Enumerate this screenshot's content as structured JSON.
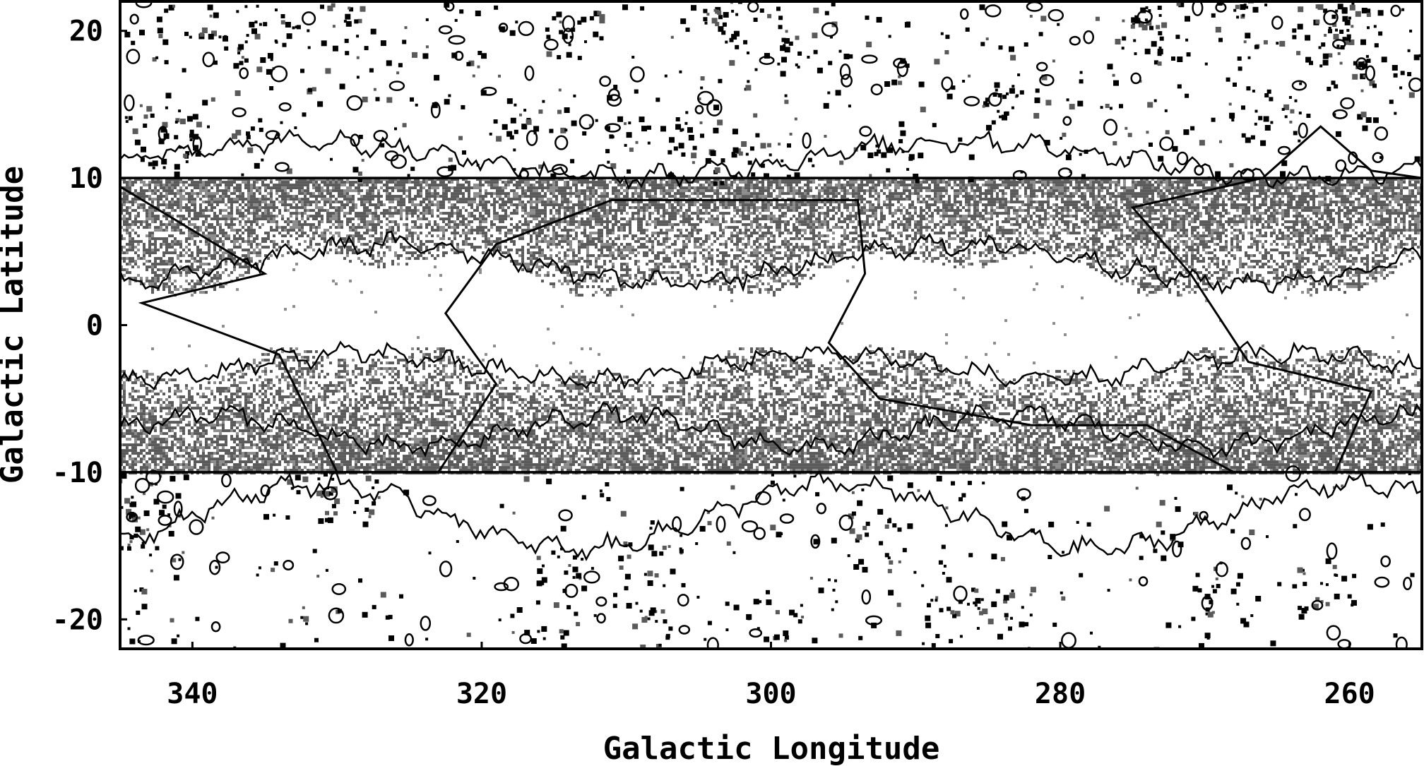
{
  "chart_data": {
    "type": "scatter",
    "title": "",
    "xlabel": "Galactic Longitude",
    "ylabel": "Galactic Latitude",
    "xlim": [
      345,
      255
    ],
    "ylim": [
      -22,
      22
    ],
    "x_reversed": true,
    "xticks": [
      340,
      320,
      300,
      280,
      260
    ],
    "xtick_labels": [
      "340",
      "320",
      "300",
      "280",
      "260"
    ],
    "yticks": [
      20,
      10,
      0,
      -10,
      -20
    ],
    "ytick_labels": [
      "20",
      "10",
      "0",
      "-10",
      "-20"
    ],
    "reference_lines_b": [
      10,
      -10
    ],
    "survey_region_outline": [
      [
        346,
        10
      ],
      [
        335,
        3.5
      ],
      [
        343.5,
        1.5
      ],
      [
        334,
        -2
      ],
      [
        330,
        -10
      ],
      [
        323,
        -10
      ],
      [
        319,
        -4
      ],
      [
        322.5,
        0.8
      ],
      [
        319,
        5.5
      ],
      [
        311,
        8.5
      ],
      [
        294,
        8.5
      ],
      [
        293.5,
        3.5
      ],
      [
        296,
        -1.2
      ],
      [
        292.5,
        -5
      ],
      [
        282,
        -6.8
      ],
      [
        274,
        -6.8
      ],
      [
        268,
        -10
      ],
      [
        261,
        -10
      ],
      [
        258.5,
        -4.5
      ],
      [
        267,
        -2.5
      ],
      [
        271,
        3.5
      ],
      [
        275,
        8
      ],
      [
        266,
        10
      ],
      [
        262,
        13.5
      ],
      [
        258.5,
        10.5
      ],
      [
        255,
        10
      ]
    ],
    "grid": false,
    "legend": "none",
    "colors": {
      "foreground": "#000000",
      "dense_field": "#5a5a5a",
      "sparse_field": "#8c8c8c"
    }
  }
}
